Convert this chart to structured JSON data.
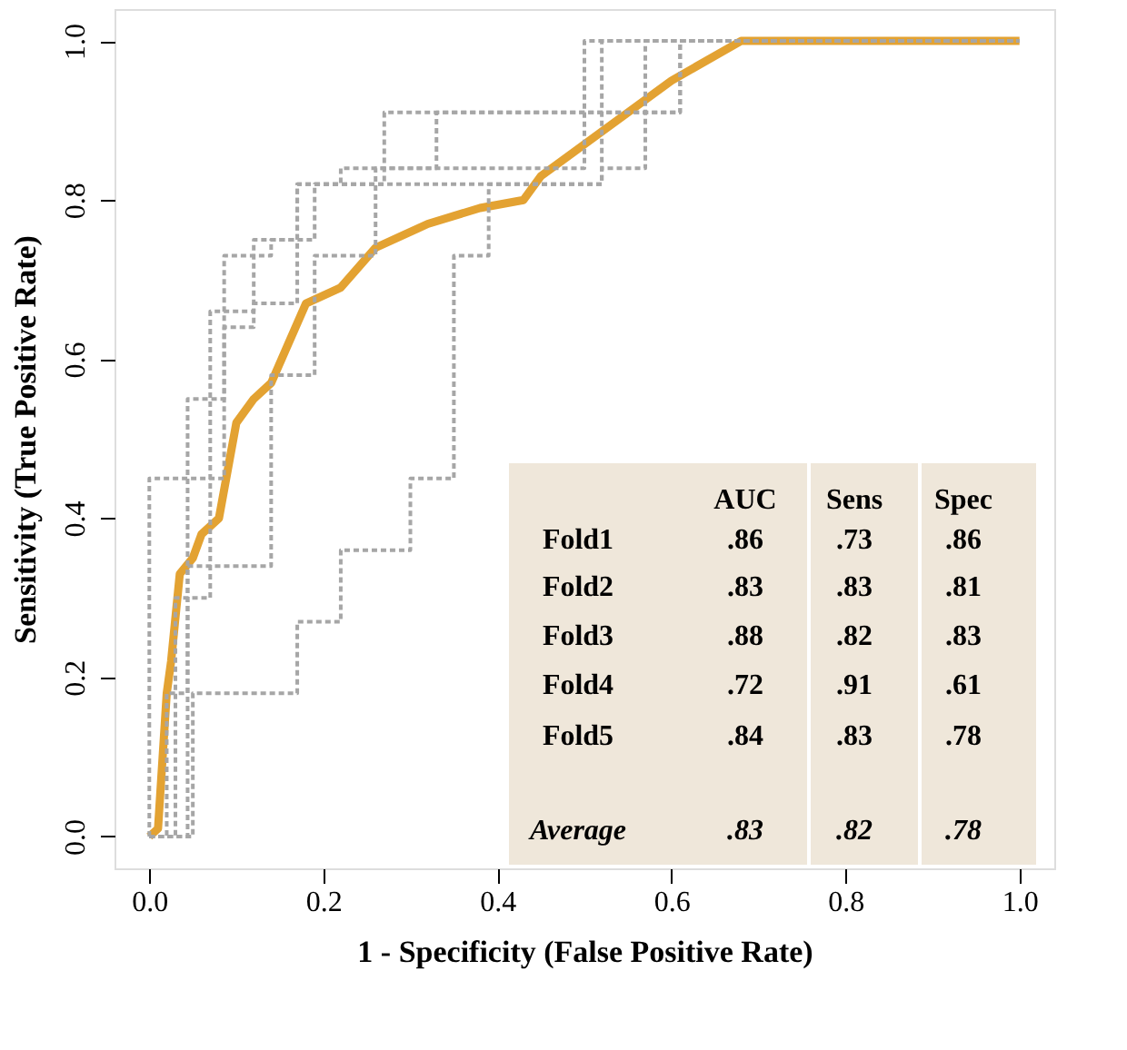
{
  "chart_data": {
    "type": "line",
    "xlabel": "1 - Specificity (False Positive Rate)",
    "ylabel": "Sensitivity (True Positive Rate)",
    "xlim": [
      -0.04,
      1.04
    ],
    "ylim": [
      -0.04,
      1.04
    ],
    "xticks": [
      {
        "value": 0,
        "label": "0.0"
      },
      0.2,
      0.4,
      0.6,
      0.8,
      {
        "value": 1,
        "label": "1.0"
      }
    ],
    "yticks": [
      {
        "value": 0,
        "label": "0.0"
      },
      0.2,
      0.4,
      0.6,
      0.8,
      {
        "value": 1,
        "label": "1.0"
      }
    ],
    "series": [
      {
        "line_style": "solid",
        "color": "#e3a232",
        "x": [
          0,
          0.01,
          0.02,
          0.025,
          0.035,
          0.05,
          0.06,
          0.08,
          0.1,
          0.12,
          0.14,
          0.16,
          0.18,
          0.22,
          0.26,
          0.32,
          0.38,
          0.43,
          0.45,
          0.5,
          0.55,
          0.6,
          0.68,
          1
        ],
        "values": [
          0,
          0.01,
          0.18,
          0.22,
          0.33,
          0.35,
          0.38,
          0.4,
          0.52,
          0.55,
          0.57,
          0.62,
          0.67,
          0.69,
          0.74,
          0.77,
          0.79,
          0.8,
          0.83,
          0.87,
          0.91,
          0.95,
          1.0,
          1.0
        ]
      },
      {
        "line_style": "dashed",
        "color": "#a6a6a6",
        "x": [
          0,
          0,
          0.044,
          0.044,
          0.086,
          0.086,
          0.14,
          0.14,
          0.19,
          0.19,
          0.27,
          0.27,
          0.5,
          0.5,
          1
        ],
        "values": [
          0,
          0.45,
          0.45,
          0.55,
          0.55,
          0.73,
          0.73,
          0.75,
          0.75,
          0.82,
          0.82,
          0.91,
          0.91,
          1.0,
          1.0
        ]
      },
      {
        "line_style": "dashed",
        "color": "#a6a6a6",
        "x": [
          0,
          0.044,
          0.044,
          0.14,
          0.14,
          0.19,
          0.19,
          0.26,
          0.26,
          0.5,
          0.5,
          0.57,
          0.57,
          1
        ],
        "values": [
          0,
          0,
          0.34,
          0.34,
          0.58,
          0.58,
          0.73,
          0.73,
          0.84,
          0.84,
          0.91,
          0.91,
          1.0,
          1.0
        ]
      },
      {
        "line_style": "dashed",
        "color": "#a6a6a6",
        "x": [
          0,
          0.02,
          0.02,
          0.044,
          0.044,
          0.086,
          0.086,
          0.12,
          0.12,
          0.17,
          0.17,
          0.22,
          0.22,
          0.33,
          0.33,
          0.52,
          0.52,
          1
        ],
        "values": [
          0,
          0,
          0.18,
          0.18,
          0.45,
          0.45,
          0.64,
          0.64,
          0.67,
          0.67,
          0.82,
          0.82,
          0.84,
          0.84,
          0.91,
          0.91,
          1.0,
          1.0
        ]
      },
      {
        "line_style": "dashed",
        "color": "#a6a6a6",
        "x": [
          0,
          0.05,
          0.05,
          0.17,
          0.17,
          0.22,
          0.22,
          0.3,
          0.3,
          0.35,
          0.35,
          0.39,
          0.39,
          0.52,
          0.52,
          0.57,
          0.57,
          0.61,
          0.61,
          1
        ],
        "values": [
          0,
          0,
          0.18,
          0.18,
          0.27,
          0.27,
          0.36,
          0.36,
          0.45,
          0.45,
          0.73,
          0.73,
          0.82,
          0.82,
          0.84,
          0.84,
          0.91,
          0.91,
          1.0,
          1.0
        ]
      },
      {
        "line_style": "dashed",
        "color": "#a6a6a6",
        "x": [
          0,
          0.03,
          0.03,
          0.07,
          0.07,
          0.12,
          0.12,
          0.17,
          0.17,
          0.52,
          0.52,
          0.61,
          0.61,
          1
        ],
        "values": [
          0,
          0,
          0.3,
          0.3,
          0.66,
          0.66,
          0.75,
          0.75,
          0.82,
          0.82,
          0.91,
          0.91,
          1.0,
          1.0
        ]
      }
    ],
    "annotations": [
      "AUC",
      "Sens",
      "Spec",
      "Fold1",
      ".86",
      ".73",
      ".86",
      "Fold2",
      ".83",
      ".83",
      ".81",
      "Fold3",
      ".88",
      ".82",
      ".83",
      "Fold4",
      ".72",
      ".91",
      ".61",
      "Fold5",
      ".84",
      ".83",
      ".78",
      "Average",
      ".83",
      ".82",
      ".78"
    ]
  }
}
